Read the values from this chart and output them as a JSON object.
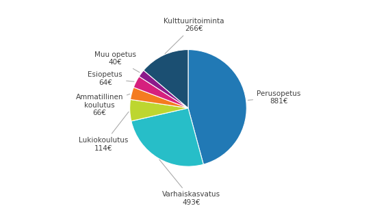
{
  "labels": [
    "Perusopetus",
    "Varhaiskasvatus",
    "Lukiokoulutus",
    "Ammatillinen\nkoulutus",
    "Esiopetus",
    "Muu opetus",
    "Kulttuuritoiminta"
  ],
  "label_display": [
    "Perusopetus\n881€",
    "Varhaiskasvatus\n493€",
    "Lukiokoulutus\n114€",
    "Ammatillinen\nkoulutus\n66€",
    "Esiopetus\n64€",
    "Muu opetus\n40€",
    "Kulttuuritoiminta\n266€"
  ],
  "values": [
    881,
    493,
    114,
    66,
    64,
    40,
    266
  ],
  "colors": [
    "#2179B5",
    "#27BEC8",
    "#BDD630",
    "#F47B20",
    "#D6207E",
    "#8B1A8B",
    "#1B4F72"
  ],
  "background_color": "#ffffff",
  "text_color": "#404040"
}
